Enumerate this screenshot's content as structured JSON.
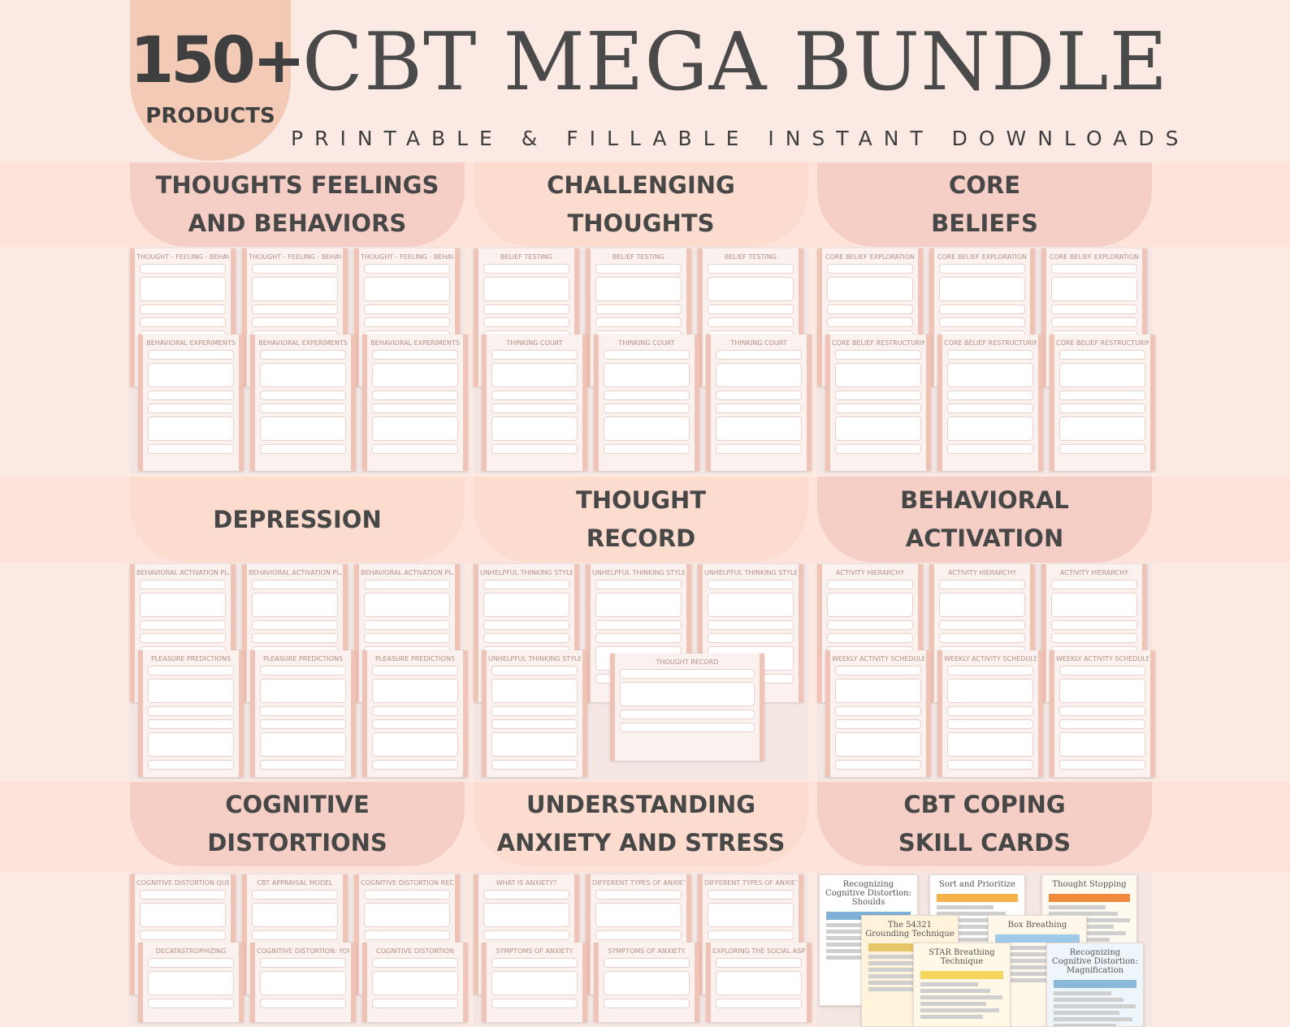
{
  "badge": {
    "count": "150+",
    "label": "PRODUCTS"
  },
  "title": "CBT MEGA BUNDLE",
  "subtitle": "PRINTABLE & FILLABLE INSTANT DOWNLOADS",
  "colors": {
    "badge": "#f3cab6",
    "tab": "#f5cfc5",
    "text": "#474747",
    "background": "#fbe9e2"
  },
  "sections": [
    {
      "label": "THOUGHTS FEELINGS\nAND BEHAVIORS",
      "sheets": [
        "THOUGHT - FEELING - BEHAVIOR TRIANGLE",
        "THOUGHT - FEELING - BEHAVIOR TRIANGLE",
        "THOUGHT - FEELING - BEHAVIOR TRIANGLE",
        "BEHAVIORAL EXPERIMENTS",
        "BEHAVIORAL EXPERIMENTS",
        "BEHAVIORAL EXPERIMENTS"
      ]
    },
    {
      "label": "CHALLENGING\nTHOUGHTS",
      "sheets": [
        "BELIEF TESTING",
        "BELIEF TESTING",
        "BELIEF TESTING",
        "THINKING COURT",
        "THINKING COURT",
        "THINKING COURT"
      ]
    },
    {
      "label": "CORE\nBELIEFS",
      "sheets": [
        "CORE BELIEF EXPLORATION",
        "CORE BELIEF EXPLORATION",
        "CORE BELIEF EXPLORATION",
        "CORE BELIEF RESTRUCTURING",
        "CORE BELIEF RESTRUCTURING",
        "CORE BELIEF RESTRUCTURING"
      ]
    },
    {
      "label": "DEPRESSION",
      "sheets": [
        "BEHAVIORAL ACTIVATION PLAN",
        "BEHAVIORAL ACTIVATION PLAN",
        "BEHAVIORAL ACTIVATION PLAN",
        "PLEASURE PREDICTIONS",
        "PLEASURE PREDICTIONS",
        "PLEASURE PREDICTIONS"
      ]
    },
    {
      "label": "THOUGHT\nRECORD",
      "sheets": [
        "UNHELPFUL THINKING STYLES",
        "UNHELPFUL THINKING STYLES",
        "UNHELPFUL THINKING STYLES",
        "UNHELPFUL THINKING STYLES",
        "THOUGHT RECORD"
      ]
    },
    {
      "label": "BEHAVIORAL\nACTIVATION",
      "sheets": [
        "ACTIVITY HIERARCHY",
        "ACTIVITY HIERARCHY",
        "ACTIVITY HIERARCHY",
        "WEEKLY ACTIVITY SCHEDULE",
        "WEEKLY ACTIVITY SCHEDULE",
        "WEEKLY ACTIVITY SCHEDULE"
      ]
    },
    {
      "label": "COGNITIVE\nDISTORTIONS",
      "sheets": [
        "COGNITIVE DISTORTION QUESTION AND REFRAME YOUR THOUGHTS",
        "CBT APPRAISAL MODEL",
        "COGNITIVE DISTORTION RECORDING MY THOUGHTS",
        "DECATASTROPHIZING",
        "COGNITIVE DISTORTION: YOUR INNER RULES",
        "COGNITIVE DISTORTION"
      ]
    },
    {
      "label": "UNDERSTANDING\nANXIETY AND STRESS",
      "sheets": [
        "WHAT IS ANXIETY?",
        "DIFFERENT TYPES OF ANXIETY",
        "DIFFERENT TYPES OF ANXIETY",
        "SYMPTOMS OF ANXIETY",
        "SYMPTOMS OF ANXIETY",
        "EXPLORING THE SOCIAL ASPECT OF ANXIETY"
      ]
    },
    {
      "label": "CBT COPING\nSKILL CARDS",
      "cards": [
        "Recognizing Cognitive Distortion: Shoulds",
        "Sort and Prioritize",
        "Thought Stopping",
        "The 54321 Grounding Technique",
        "Box Breathing",
        "STAR Breathing Technique",
        "Recognizing Cognitive Distortion: Magnification"
      ]
    }
  ]
}
